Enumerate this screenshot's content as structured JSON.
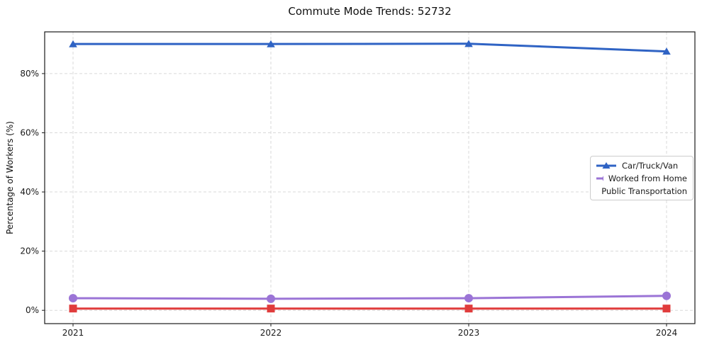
{
  "chart_data": {
    "type": "line",
    "title": "Commute Mode Trends: 52732",
    "xlabel": "",
    "ylabel": "Percentage of Workers (%)",
    "x": [
      2021,
      2022,
      2023,
      2024
    ],
    "x_tick_labels": [
      "2021",
      "2022",
      "2023",
      "2024"
    ],
    "y_ticks": [
      0,
      20,
      40,
      60,
      80
    ],
    "y_tick_labels": [
      "0%",
      "20%",
      "40%",
      "60%",
      "80%"
    ],
    "ylim": [
      -4.5,
      94.1
    ],
    "grid": "dashed both directions",
    "legend_position": "center-right inside plot",
    "series": [
      {
        "name": "Car/Truck/Van",
        "color": "#2f63c4",
        "marker": "triangle-up",
        "values": [
          90.0,
          90.0,
          90.1,
          87.5
        ]
      },
      {
        "name": "Worked from Home",
        "color": "#9b74d6",
        "marker": "circle",
        "values": [
          4.1,
          3.9,
          4.1,
          4.9
        ]
      },
      {
        "name": "Public Transportation",
        "color": "#e03c3c",
        "marker": "square",
        "values": [
          0.6,
          0.6,
          0.6,
          0.6
        ]
      }
    ],
    "axis_color": "#1a1a1a",
    "grid_color": "#d9d9d9",
    "tick_label_color": "#1a1a1a"
  }
}
